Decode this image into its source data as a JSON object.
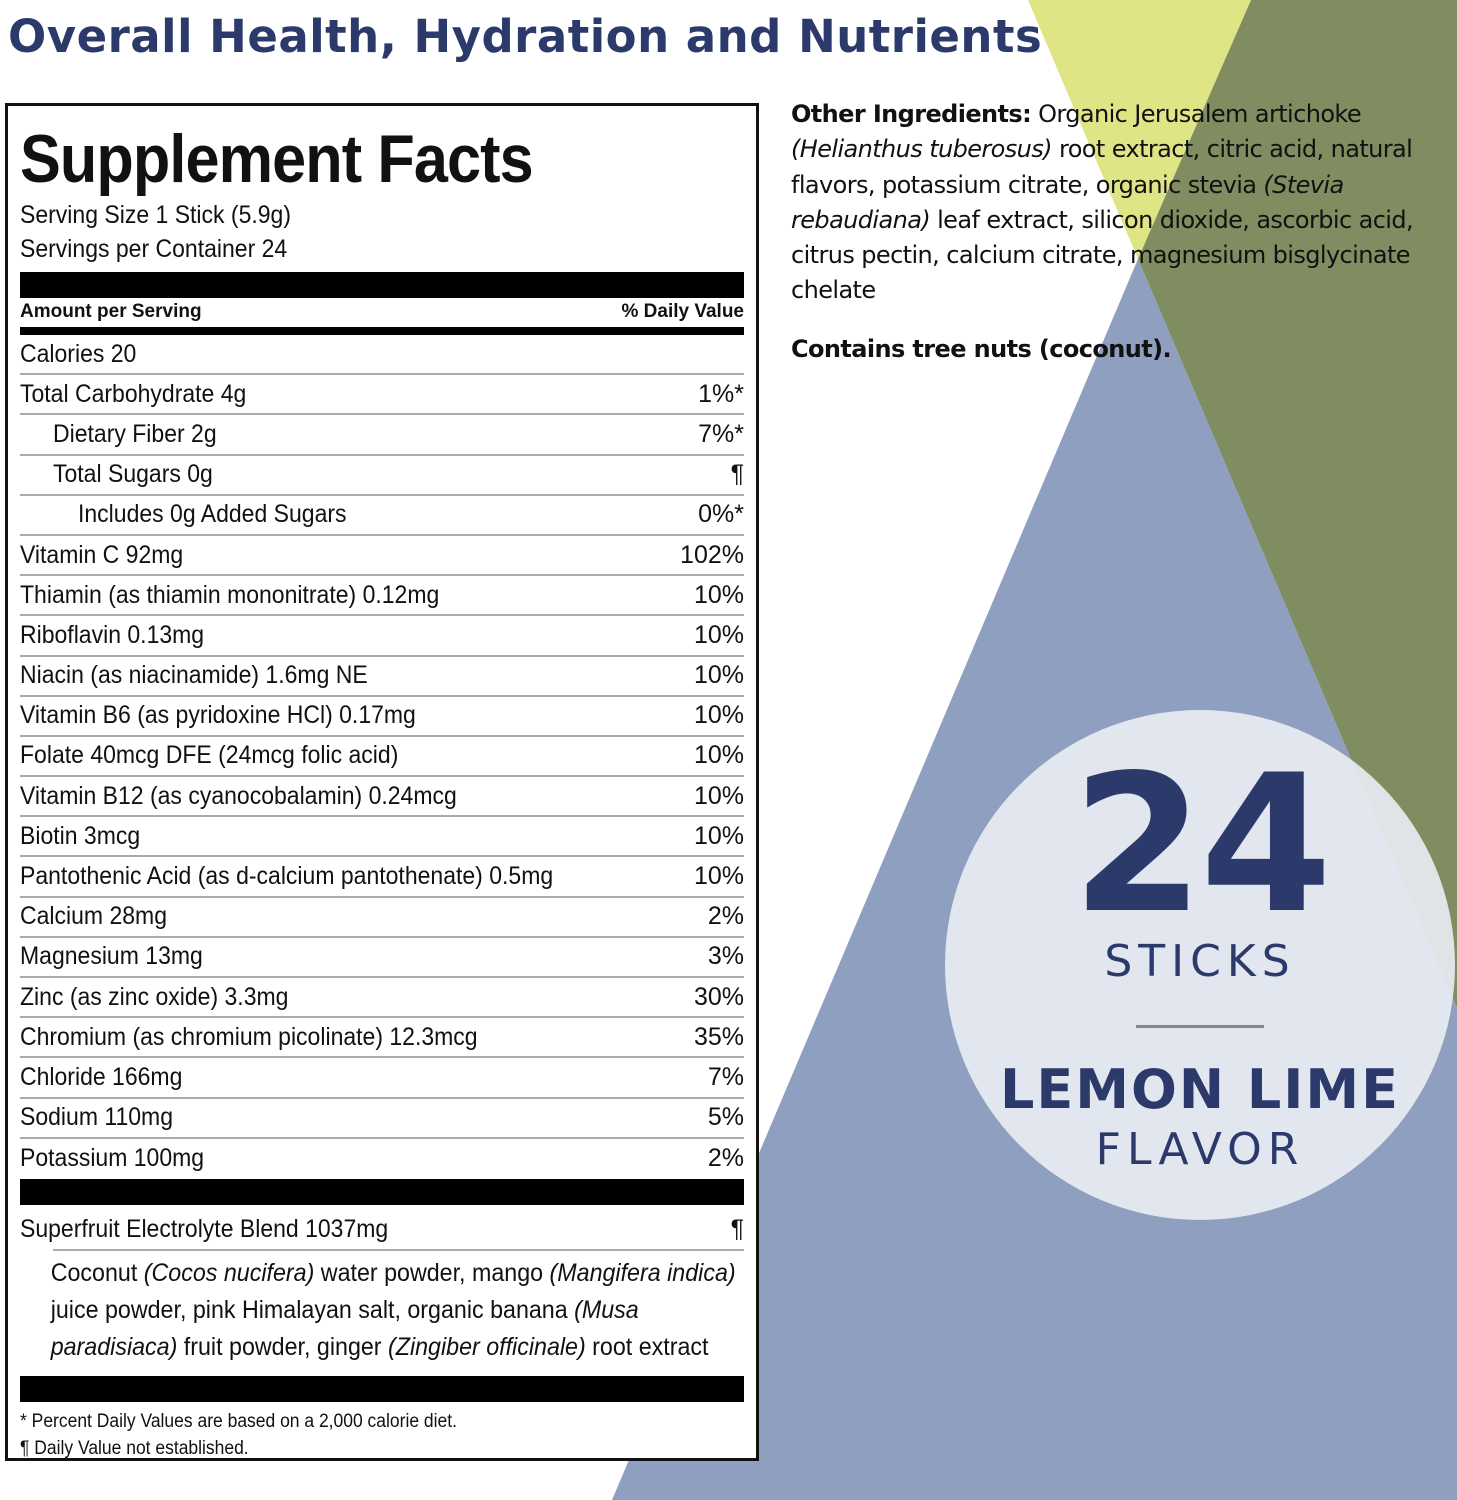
{
  "colors": {
    "title": "#2b3a6b",
    "yellow": "#dfe585",
    "olive": "#7f8d60",
    "blue": "#8f9fbf",
    "badge": "#e9ecf2"
  },
  "title": "Overall Health, Hydration and Nutrients",
  "facts": {
    "heading": "Supplement Facts",
    "serving_size": "Serving Size 1 Stick (5.9g)",
    "servings_per_container": "Servings per Container 24",
    "amount_header": "Amount per Serving",
    "dv_header": "% Daily Value",
    "rows": [
      {
        "name": "Calories 20",
        "dv": ""
      },
      {
        "name": "Total Carbohydrate 4g",
        "dv": "1%*"
      },
      {
        "name": "Dietary Fiber 2g",
        "dv": "7%*"
      },
      {
        "name": "Total Sugars 0g",
        "dv": "¶"
      },
      {
        "name": "Includes 0g Added Sugars",
        "dv": "0%*"
      },
      {
        "name": "Vitamin C 92mg",
        "dv": "102%"
      },
      {
        "name": "Thiamin (as thiamin mononitrate) 0.12mg",
        "dv": "10%"
      },
      {
        "name": "Riboflavin 0.13mg",
        "dv": "10%"
      },
      {
        "name": "Niacin (as niacinamide) 1.6mg NE",
        "dv": "10%"
      },
      {
        "name": "Vitamin B6 (as pyridoxine HCl) 0.17mg",
        "dv": "10%"
      },
      {
        "name": "Folate 40mcg DFE (24mcg folic acid)",
        "dv": "10%"
      },
      {
        "name": "Vitamin B12 (as cyanocobalamin) 0.24mcg",
        "dv": "10%"
      },
      {
        "name": "Biotin 3mcg",
        "dv": "10%"
      },
      {
        "name": "Pantothenic Acid (as d-calcium pantothenate) 0.5mg",
        "dv": "10%"
      },
      {
        "name": "Calcium 28mg",
        "dv": "2%"
      },
      {
        "name": "Magnesium 13mg",
        "dv": "3%"
      },
      {
        "name": "Zinc (as zinc oxide) 3.3mg",
        "dv": "30%"
      },
      {
        "name": "Chromium (as chromium picolinate) 12.3mcg",
        "dv": "35%"
      },
      {
        "name": "Chloride 166mg",
        "dv": "7%"
      },
      {
        "name": "Sodium 110mg",
        "dv": "5%"
      },
      {
        "name": "Potassium 100mg",
        "dv": "2%"
      }
    ],
    "blend": {
      "name": "Superfruit Electrolyte Blend 1037mg",
      "dv": "¶",
      "parts": [
        "Coconut ",
        "(Cocos nucifera)",
        " water powder, mango ",
        "(Mangifera indica)",
        " juice powder, pink Himalayan salt, organic banana ",
        "(Musa paradisiaca)",
        " fruit powder, ginger ",
        "(Zingiber officinale)",
        " root extract"
      ]
    },
    "footnote1": "* Percent Daily Values are based on a 2,000 calorie diet.",
    "footnote2": "¶ Daily Value not established."
  },
  "other": {
    "label": "Other Ingredients:",
    "parts": [
      " Organic Jerusalem artichoke ",
      "(Helianthus tuberosus)",
      " root extract, citric acid, natural flavors, potassium citrate, organic stevia ",
      "(Stevia rebaudiana)",
      " leaf extract, silicon dioxide, ascorbic acid, citrus pectin, calcium citrate, magnesium bisglycinate chelate"
    ],
    "contains": "Contains tree nuts (coconut)."
  },
  "badge": {
    "count": "24",
    "unit": "STICKS",
    "flavor": "LEMON LIME",
    "flavor_word": "FLAVOR"
  }
}
